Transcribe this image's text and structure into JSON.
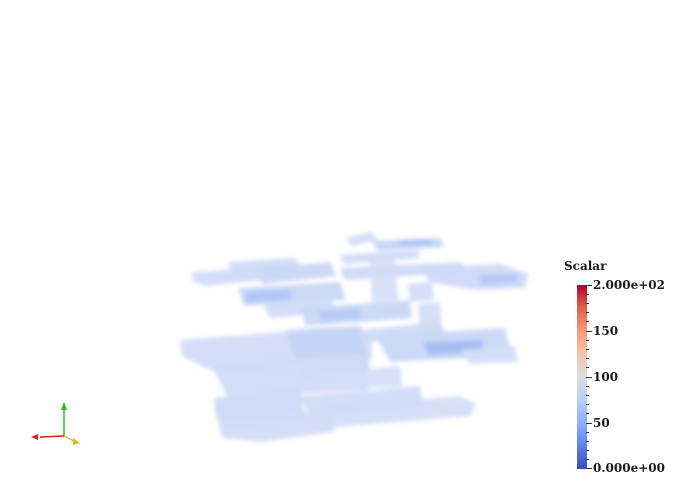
{
  "scalar_bar": {
    "title": "Scalar",
    "labels": {
      "max": "2.000e+02",
      "v150": "150",
      "v100": "100",
      "v50": "50",
      "min": "0.000e+00"
    }
  },
  "colors": {
    "background": "#ffffff",
    "colormap_low": "#3b4cc0",
    "colormap_mid": "#dddcdc",
    "colormap_high": "#b40426",
    "volume_tint": "#c7d6f5",
    "axis_x": "#d62020",
    "axis_y": "#22c022",
    "axis_z": "#d4c020"
  },
  "orientation_axes": {
    "icon": "orientation-axes-icon"
  }
}
